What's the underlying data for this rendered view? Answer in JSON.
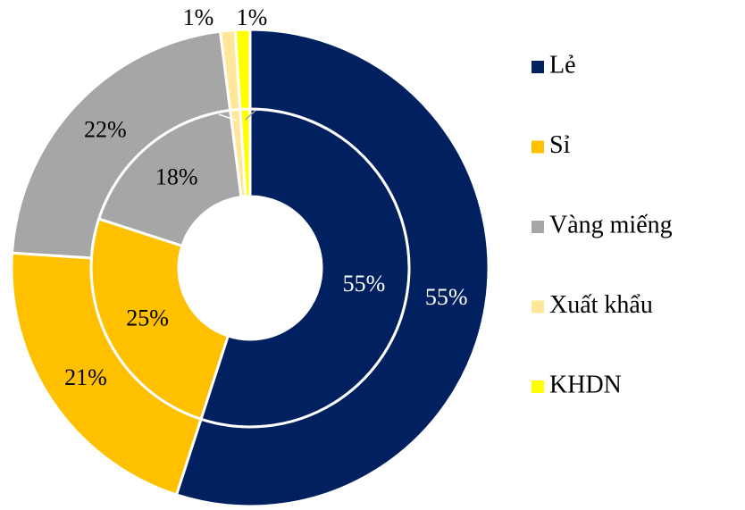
{
  "chart_data": {
    "type": "donut",
    "categories": [
      "Lẻ",
      "Sỉ",
      "Vàng miếng",
      "Xuất khẩu",
      "KHDN"
    ],
    "colors": [
      "#002060",
      "#ffc000",
      "#a6a6a6",
      "#ffe699",
      "#ffff00"
    ],
    "series": [
      {
        "values": [
          55,
          25,
          18,
          1,
          1
        ],
        "value_labels": [
          "55%",
          "25%",
          "18%",
          "1%",
          "1%"
        ]
      },
      {
        "values": [
          55,
          21,
          22,
          1,
          1
        ],
        "value_labels": [
          "55%",
          "21%",
          "22%",
          "1%",
          "1%"
        ]
      }
    ],
    "legend": "right"
  }
}
